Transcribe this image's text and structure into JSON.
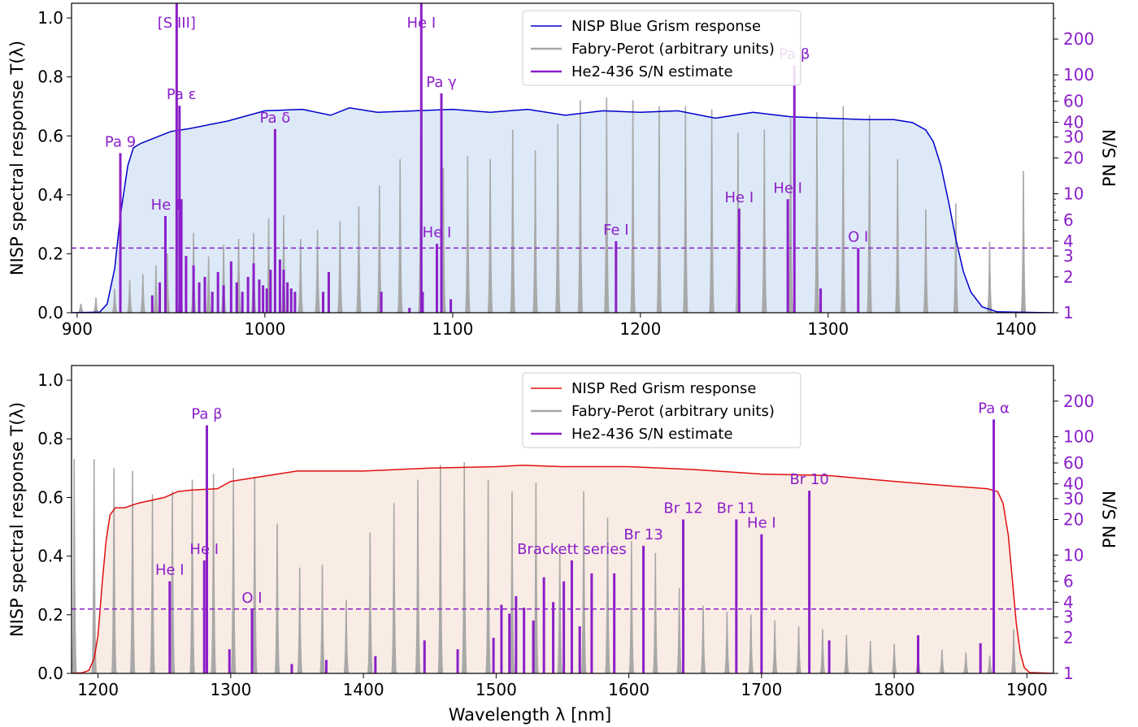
{
  "chart_data": [
    {
      "type": "line",
      "panel": "top",
      "xlim": [
        897,
        1420
      ],
      "ylim": [
        0,
        1.05
      ],
      "ylabel": "NISP spectral response T(λ)",
      "y2label": "PN S/N",
      "y2scale": "log",
      "y2lim": [
        1,
        400
      ],
      "xticks": [
        900,
        1000,
        1100,
        1200,
        1300,
        1400
      ],
      "yticks": [
        0.0,
        0.2,
        0.4,
        0.6,
        0.8,
        1.0
      ],
      "y2ticks": [
        1,
        2,
        3,
        4,
        6,
        10,
        20,
        30,
        40,
        60,
        100,
        200
      ],
      "grid": false,
      "legend_position": "top-center",
      "legend": [
        "NISP Blue Grism response",
        "Fabry-Perot (arbitrary units)",
        "He2-436 S/N estimate"
      ],
      "colors": {
        "response": "#0000cc",
        "fill": "#dde9f7",
        "fabry_perot": "#a8a8a8",
        "sn": "#8b1fc9"
      },
      "response_curve": {
        "x": [
          897,
          912,
          916,
          920,
          923,
          927,
          930,
          934,
          940,
          950,
          960,
          980,
          1000,
          1020,
          1035,
          1045,
          1060,
          1080,
          1100,
          1120,
          1140,
          1160,
          1180,
          1200,
          1220,
          1240,
          1260,
          1280,
          1300,
          1320,
          1335,
          1345,
          1352,
          1356,
          1360,
          1364,
          1368,
          1372,
          1376,
          1382,
          1390,
          1420
        ],
        "y": [
          0,
          0.002,
          0.03,
          0.15,
          0.33,
          0.5,
          0.56,
          0.575,
          0.59,
          0.615,
          0.625,
          0.65,
          0.685,
          0.69,
          0.67,
          0.695,
          0.68,
          0.685,
          0.69,
          0.68,
          0.69,
          0.67,
          0.685,
          0.68,
          0.685,
          0.66,
          0.68,
          0.665,
          0.66,
          0.655,
          0.655,
          0.645,
          0.62,
          0.58,
          0.5,
          0.38,
          0.25,
          0.14,
          0.07,
          0.02,
          0.003,
          0
        ]
      },
      "sn_threshold": 3.5,
      "fabry_perot_peaks": {
        "x": [
          902,
          910,
          920,
          928,
          935,
          942,
          948,
          955,
          962,
          970,
          978,
          986,
          994,
          1002,
          1010,
          1019,
          1028,
          1040,
          1050,
          1061,
          1072,
          1083,
          1095,
          1108,
          1120,
          1132,
          1144,
          1156,
          1168,
          1182,
          1196,
          1210,
          1224,
          1238,
          1252,
          1266,
          1280,
          1294,
          1308,
          1322,
          1337,
          1352,
          1368,
          1386,
          1404
        ],
        "y": [
          0.03,
          0.05,
          0.08,
          0.11,
          0.13,
          0.16,
          0.2,
          0.23,
          0.27,
          0.19,
          0.23,
          0.25,
          0.27,
          0.32,
          0.33,
          0.25,
          0.28,
          0.31,
          0.36,
          0.43,
          0.52,
          0.61,
          0.49,
          0.53,
          0.52,
          0.62,
          0.55,
          0.64,
          0.72,
          0.73,
          0.72,
          0.7,
          0.7,
          0.69,
          0.61,
          0.62,
          0.66,
          0.68,
          0.7,
          0.67,
          0.52,
          0.35,
          0.37,
          0.24,
          0.48
        ]
      },
      "sn_lines": {
        "x": [
          923.0,
          947.0,
          953.0,
          954.5,
          955.5,
          958.0,
          962.0,
          965.0,
          968.0,
          972.0,
          975.0,
          978.0,
          982.0,
          985.0,
          988.0,
          991.0,
          994.0,
          997.0,
          999.0,
          1001.0,
          1003.0,
          1005.4,
          1008.0,
          1010.0,
          1012.0,
          1014.0,
          1016.0,
          1031.0,
          1034.0,
          1083.3,
          1084.0,
          1091.6,
          1094.0,
          1187.0,
          1252.6,
          1278.5,
          1282.0,
          1316.0,
          944.0,
          940.0,
          1062.0,
          1077.0,
          1099.0,
          1296.0
        ],
        "sn": [
          22,
          6.5,
          400,
          55,
          9,
          3.0,
          2.5,
          1.8,
          2.0,
          1.5,
          2.2,
          1.7,
          2.7,
          1.8,
          1.5,
          2.0,
          2.6,
          1.9,
          1.7,
          1.6,
          2.3,
          35,
          2.8,
          2.3,
          1.8,
          1.6,
          1.5,
          1.5,
          2.2,
          400,
          1.5,
          3.8,
          70,
          4.0,
          7.5,
          9.0,
          120,
          3.5,
          1.8,
          1.4,
          1.5,
          1.1,
          1.3,
          1.6
        ]
      },
      "annotations": [
        {
          "text": "Pa 9",
          "x": 923.0,
          "sn": 22
        },
        {
          "text": "He I",
          "x": 947.0,
          "sn": 6.5
        },
        {
          "text": "[S III]",
          "x": 953.0,
          "sn": 400
        },
        {
          "text": "Pa ε",
          "x": 955.5,
          "sn": 55
        },
        {
          "text": "Pa δ",
          "x": 1005.4,
          "sn": 35
        },
        {
          "text": "He I",
          "x": 1083.3,
          "sn": 400
        },
        {
          "text": "Pa γ",
          "x": 1094.0,
          "sn": 70
        },
        {
          "text": "He I",
          "x": 1091.6,
          "sn": 3.8
        },
        {
          "text": "Fe I",
          "x": 1187.0,
          "sn": 4.0
        },
        {
          "text": "He I",
          "x": 1252.6,
          "sn": 7.5
        },
        {
          "text": "He I",
          "x": 1278.5,
          "sn": 9.0
        },
        {
          "text": "Pa β",
          "x": 1282.0,
          "sn": 120
        },
        {
          "text": "O I",
          "x": 1316.0,
          "sn": 3.5
        }
      ]
    },
    {
      "type": "line",
      "panel": "bottom",
      "xlim": [
        1180,
        1920
      ],
      "ylim": [
        0,
        1.05
      ],
      "xlabel": "Wavelength λ [nm]",
      "ylabel": "NISP spectral response T(λ)",
      "y2label": "PN S/N",
      "y2scale": "log",
      "y2lim": [
        1,
        400
      ],
      "xticks": [
        1200,
        1300,
        1400,
        1500,
        1600,
        1700,
        1800,
        1900
      ],
      "yticks": [
        0.0,
        0.2,
        0.4,
        0.6,
        0.8,
        1.0
      ],
      "y2ticks": [
        1,
        2,
        3,
        4,
        6,
        10,
        20,
        30,
        40,
        60,
        100,
        200
      ],
      "grid": false,
      "legend_position": "top-center",
      "legend": [
        "NISP Red Grism response",
        "Fabry-Perot (arbitrary units)",
        "He2-436 S/N estimate"
      ],
      "colors": {
        "response": "#e01010",
        "fill": "#f9ece4",
        "fabry_perot": "#a8a8a8",
        "sn": "#8b1fc9"
      },
      "response_curve": {
        "x": [
          1180,
          1188,
          1193,
          1197,
          1200,
          1203,
          1206,
          1209,
          1213,
          1220,
          1230,
          1250,
          1260,
          1270,
          1290,
          1300,
          1350,
          1400,
          1450,
          1500,
          1520,
          1550,
          1600,
          1650,
          1700,
          1750,
          1800,
          1840,
          1870,
          1878,
          1882,
          1886,
          1889,
          1892,
          1895,
          1898,
          1902,
          1920
        ],
        "y": [
          0,
          0.002,
          0.01,
          0.05,
          0.13,
          0.3,
          0.45,
          0.54,
          0.565,
          0.565,
          0.58,
          0.6,
          0.62,
          0.625,
          0.63,
          0.655,
          0.69,
          0.69,
          0.7,
          0.705,
          0.71,
          0.705,
          0.705,
          0.695,
          0.68,
          0.675,
          0.655,
          0.64,
          0.63,
          0.62,
          0.58,
          0.47,
          0.32,
          0.17,
          0.07,
          0.02,
          0.003,
          0
        ]
      },
      "sn_threshold": 3.5,
      "fabry_perot_peaks": {
        "x": [
          1182,
          1197,
          1212,
          1226,
          1241,
          1256,
          1271,
          1287,
          1302,
          1318,
          1335,
          1352,
          1369,
          1387,
          1405,
          1423,
          1441,
          1458,
          1476,
          1494,
          1512,
          1530,
          1548,
          1566,
          1584,
          1602,
          1620,
          1638,
          1656,
          1674,
          1692,
          1710,
          1728,
          1746,
          1764,
          1782,
          1800,
          1818,
          1836,
          1854,
          1872,
          1890
        ],
        "y": [
          0.73,
          0.73,
          0.7,
          0.69,
          0.61,
          0.62,
          0.66,
          0.68,
          0.7,
          0.67,
          0.51,
          0.36,
          0.37,
          0.25,
          0.48,
          0.58,
          0.66,
          0.71,
          0.72,
          0.66,
          0.62,
          0.65,
          0.42,
          0.62,
          0.53,
          0.45,
          0.41,
          0.29,
          0.23,
          0.21,
          0.2,
          0.18,
          0.16,
          0.15,
          0.13,
          0.11,
          0.1,
          0.09,
          0.08,
          0.07,
          0.06,
          0.15
        ]
      },
      "sn_lines": {
        "x": [
          1254.0,
          1280.0,
          1282.0,
          1299.0,
          1316.0,
          1346.0,
          1372.0,
          1409.0,
          1446.0,
          1471.0,
          1498.0,
          1504.0,
          1510.0,
          1515.0,
          1521.0,
          1528.0,
          1536.0,
          1543.0,
          1551.0,
          1557.0,
          1563.0,
          1572.0,
          1589.0,
          1611.0,
          1641.0,
          1681.0,
          1700.0,
          1736.0,
          1751.0,
          1818.0,
          1865.0,
          1875.0
        ],
        "sn": [
          6,
          9,
          125,
          1.6,
          3.5,
          1.2,
          1.3,
          1.4,
          1.9,
          1.6,
          2.0,
          3.8,
          3.2,
          4.5,
          3.6,
          2.8,
          6.5,
          4.0,
          6.0,
          9.0,
          2.5,
          7.0,
          7.0,
          12,
          20,
          20,
          15,
          35,
          1.9,
          2.1,
          1.8,
          140
        ]
      },
      "annotations": [
        {
          "text": "He I",
          "x": 1254.0,
          "sn": 6
        },
        {
          "text": "He I",
          "x": 1280.0,
          "sn": 9
        },
        {
          "text": "Pa β",
          "x": 1282.0,
          "sn": 125
        },
        {
          "text": "O I",
          "x": 1316.0,
          "sn": 3.5
        },
        {
          "text": "Brackett series",
          "x": 1557.0,
          "sn": 9.0
        },
        {
          "text": "Br 13",
          "x": 1611.0,
          "sn": 12
        },
        {
          "text": "Br 12",
          "x": 1641.0,
          "sn": 20
        },
        {
          "text": "Br 11",
          "x": 1681.0,
          "sn": 20
        },
        {
          "text": "He I",
          "x": 1700.0,
          "sn": 15
        },
        {
          "text": "Br 10",
          "x": 1736.0,
          "sn": 35
        },
        {
          "text": "Pa α",
          "x": 1875.0,
          "sn": 140
        }
      ]
    }
  ]
}
